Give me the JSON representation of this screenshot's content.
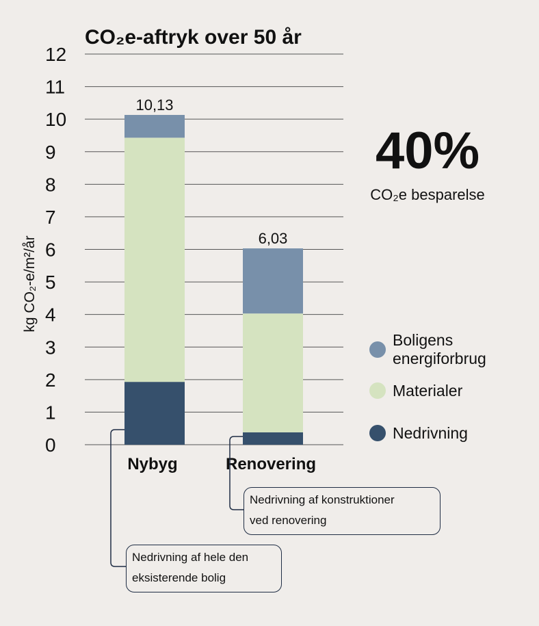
{
  "chart_data": {
    "type": "bar",
    "stacked": true,
    "title": "CO₂e-aftryk over 50 år",
    "ylabel": "kg CO₂-e/m²/år",
    "xlabel": "",
    "ylim": [
      0,
      12
    ],
    "yticks": [
      "0",
      "1",
      "2",
      "3",
      "4",
      "5",
      "6",
      "7",
      "8",
      "9",
      "10",
      "11",
      "12"
    ],
    "grid": true,
    "categories": [
      "Nybyg",
      "Renovering"
    ],
    "totals_labels": [
      "10,13",
      "6,03"
    ],
    "series": [
      {
        "name": "Nedrivning",
        "color": "#36506c",
        "values": [
          1.93,
          0.38
        ]
      },
      {
        "name": "Materialer",
        "color": "#d5e3c0",
        "values": [
          7.5,
          3.65
        ]
      },
      {
        "name": "Boligens energiforbrug",
        "color": "#7890aa",
        "values": [
          0.7,
          2.0
        ]
      }
    ],
    "legend": {
      "position": "right",
      "entries": [
        {
          "lines": [
            "Boligens",
            "energiforbrug"
          ],
          "color": "#7890aa"
        },
        {
          "lines": [
            "Materialer"
          ],
          "color": "#d5e3c0"
        },
        {
          "lines": [
            "Nedrivning"
          ],
          "color": "#36506c"
        }
      ]
    },
    "highlight": {
      "value": "40%",
      "label": "CO₂e besparelse"
    },
    "annotations": [
      {
        "text_lines": [
          "Nedrivning af konstruktioner",
          "ved renovering"
        ],
        "target": "Renovering"
      },
      {
        "text_lines": [
          "Nedrivning af hele den",
          "eksisterende bolig"
        ],
        "target": "Nybyg"
      }
    ]
  }
}
